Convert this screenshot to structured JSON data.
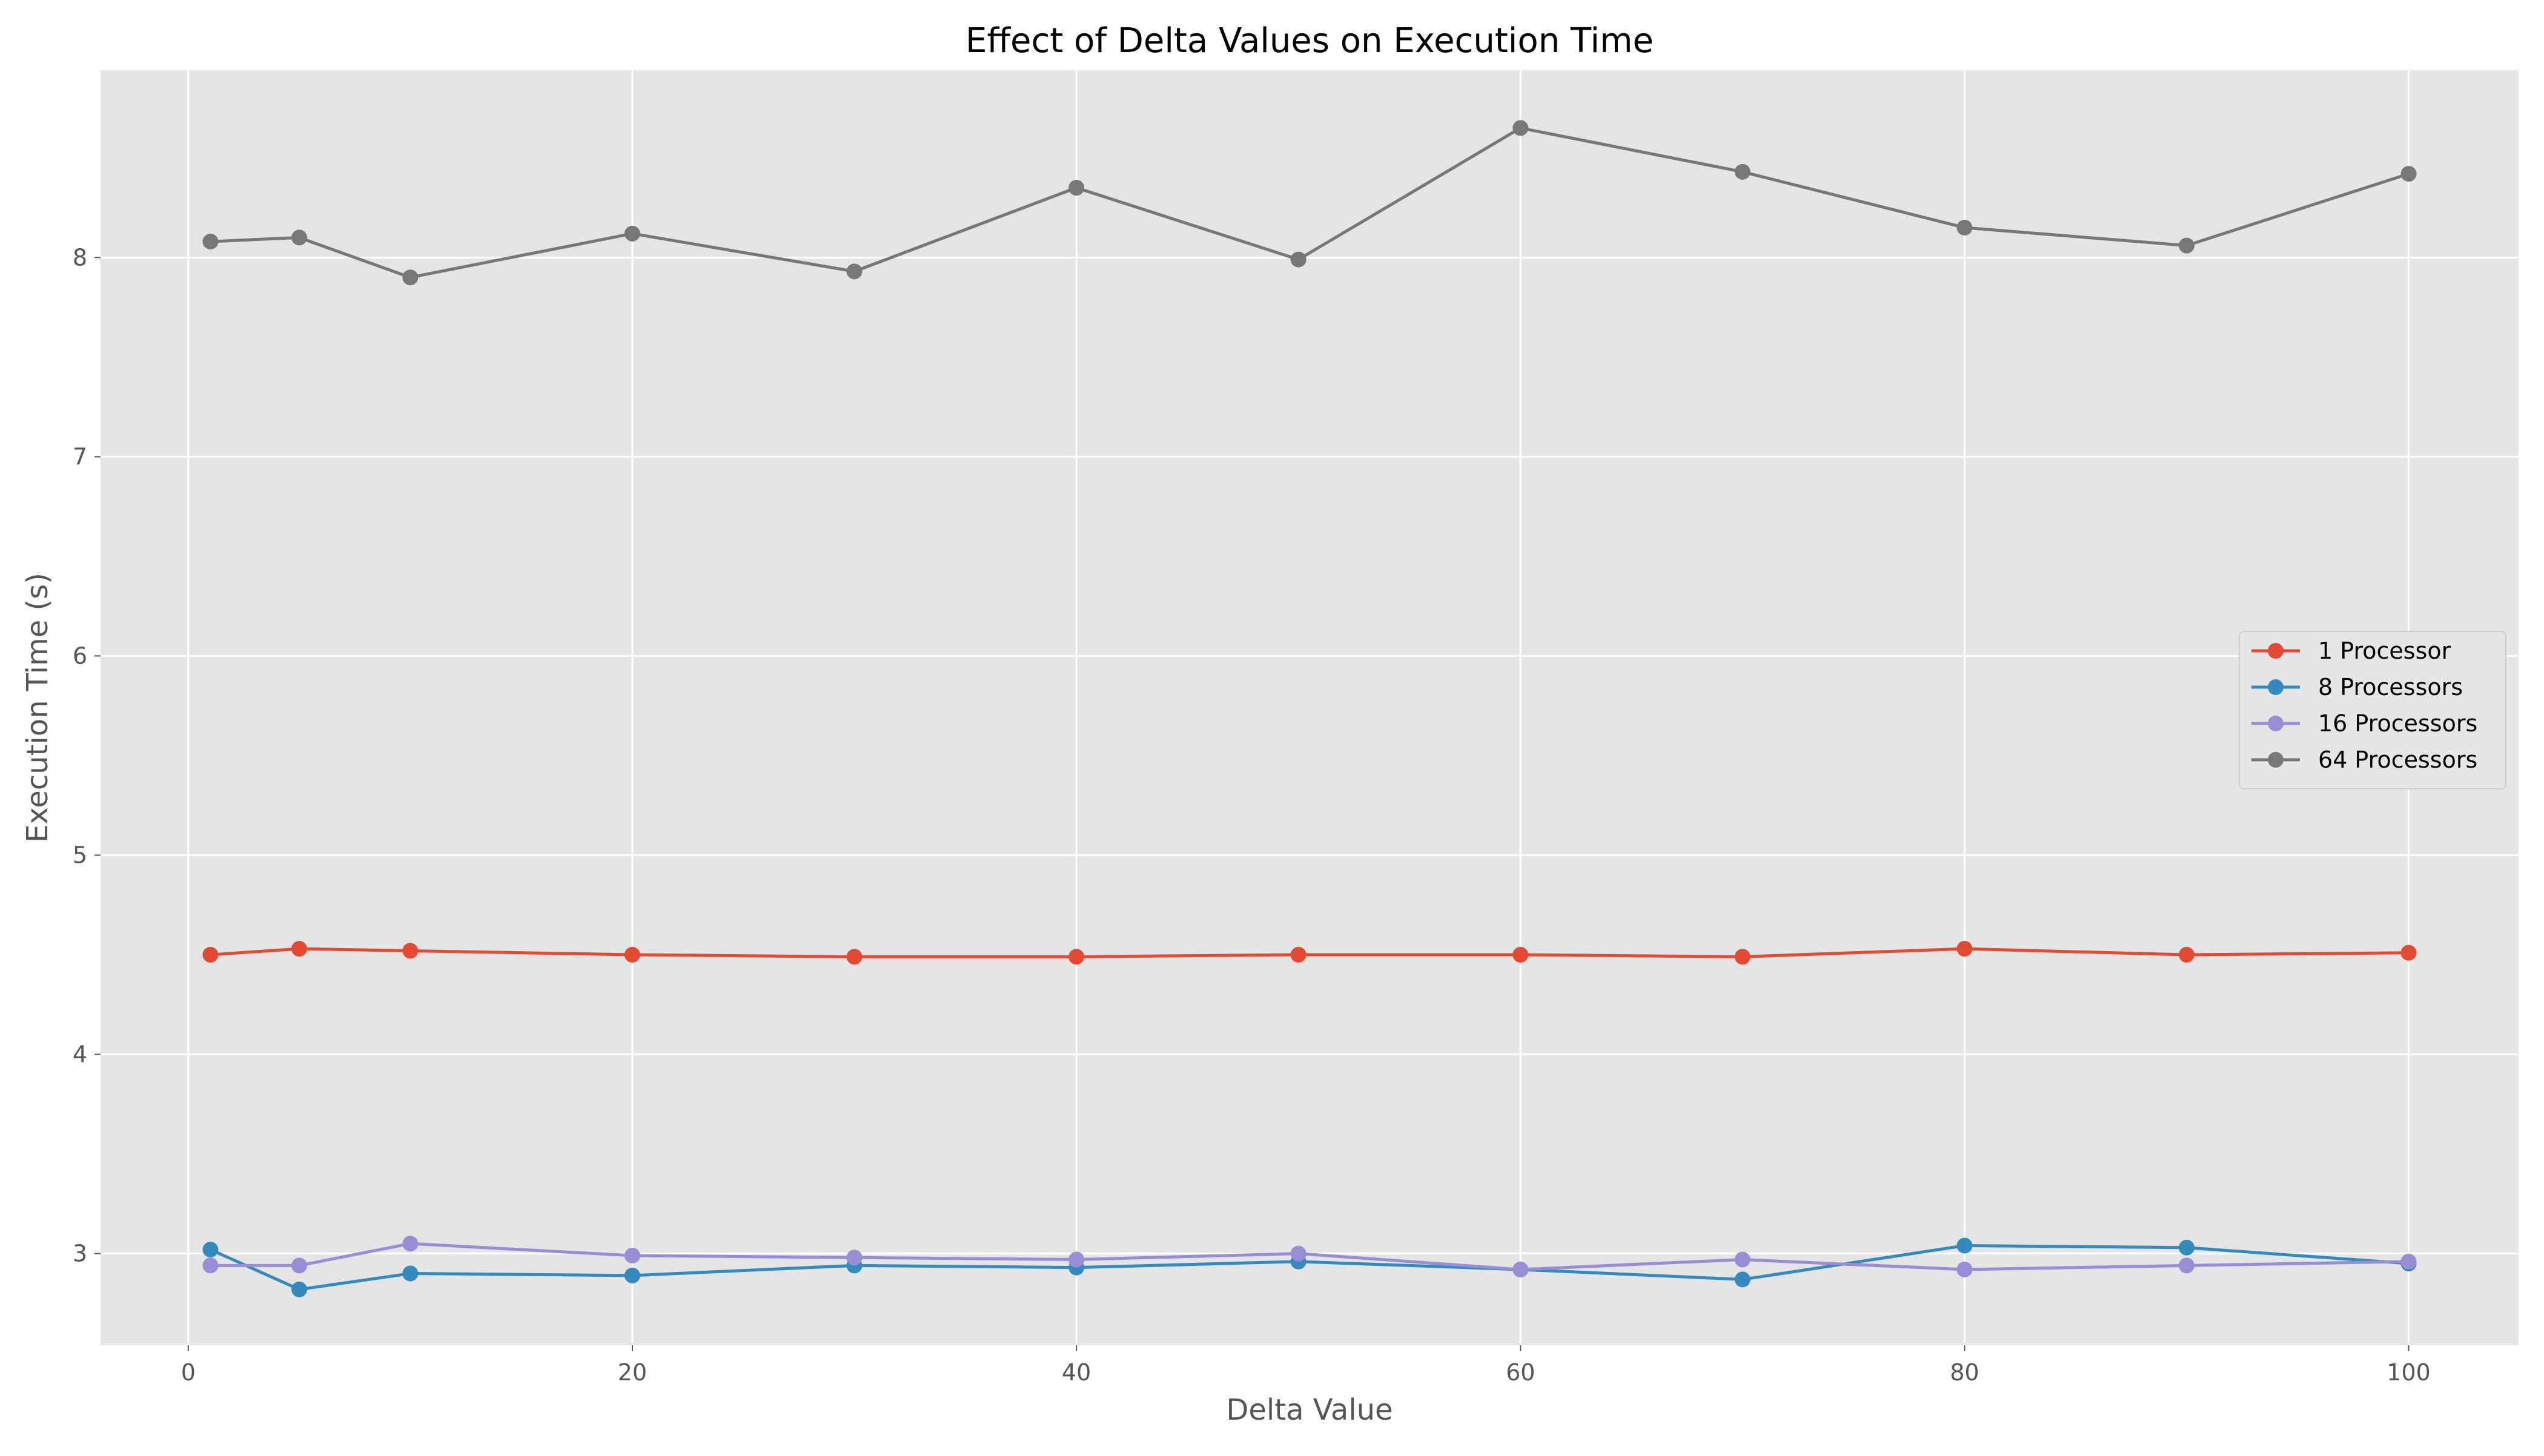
{
  "chart_data": {
    "type": "line",
    "title": "Effect of Delta Values on Execution Time",
    "xlabel": "Delta Value",
    "ylabel": "Execution Time (s)",
    "x": [
      1,
      5,
      10,
      20,
      30,
      40,
      50,
      60,
      70,
      80,
      90,
      100
    ],
    "xlim": [
      -3.95,
      104.95
    ],
    "ylim": [
      2.54,
      8.94
    ],
    "xticks": [
      0,
      20,
      40,
      60,
      80,
      100
    ],
    "yticks": [
      3,
      4,
      5,
      6,
      7,
      8
    ],
    "grid": true,
    "legend_position": "center-right",
    "series": [
      {
        "name": "1 Processor",
        "color": "#E24A33",
        "values": [
          4.5,
          4.53,
          4.52,
          4.5,
          4.49,
          4.49,
          4.5,
          4.5,
          4.49,
          4.53,
          4.5,
          4.51
        ]
      },
      {
        "name": "8 Processors",
        "color": "#348ABD",
        "values": [
          3.02,
          2.82,
          2.9,
          2.89,
          2.94,
          2.93,
          2.96,
          2.92,
          2.87,
          3.04,
          3.03,
          2.95
        ]
      },
      {
        "name": "16 Processors",
        "color": "#988ED5",
        "values": [
          2.94,
          2.94,
          3.05,
          2.99,
          2.98,
          2.97,
          3.0,
          2.92,
          2.97,
          2.92,
          2.94,
          2.96
        ]
      },
      {
        "name": "64 Processors",
        "color": "#777777",
        "values": [
          8.08,
          8.1,
          7.9,
          8.12,
          7.93,
          8.35,
          7.99,
          8.65,
          8.43,
          8.15,
          8.06,
          8.42
        ]
      }
    ]
  }
}
